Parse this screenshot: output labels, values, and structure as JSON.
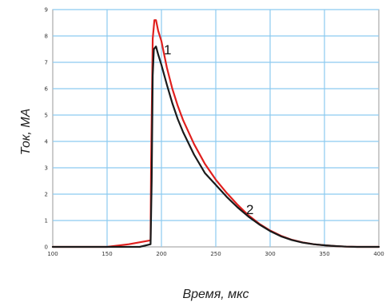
{
  "chart_data": {
    "type": "line",
    "title": "",
    "xlabel": "Время, мкс",
    "ylabel": "Ток, МА",
    "xlim": [
      100,
      400
    ],
    "ylim": [
      0,
      9
    ],
    "x_ticks": [
      "100",
      "150",
      "200",
      "250",
      "300",
      "350",
      "400"
    ],
    "y_ticks": [
      "0",
      "1",
      "2",
      "3",
      "4",
      "5",
      "6",
      "7",
      "8",
      "9"
    ],
    "grid": true,
    "grid_color": "#8ccaf0",
    "series": [
      {
        "name": "1",
        "color": "#e0201e",
        "x": [
          100,
          130,
          150,
          170,
          190,
          190.5,
          192,
          193.5,
          195,
          197,
          200,
          205,
          210,
          215,
          220,
          230,
          240,
          250,
          260,
          270,
          280,
          290,
          300,
          310,
          320,
          330,
          340,
          350,
          360,
          370,
          380,
          390,
          400
        ],
        "y": [
          0,
          0,
          0,
          0.1,
          0.25,
          3.2,
          7.9,
          8.6,
          8.6,
          8.2,
          7.8,
          6.8,
          6.0,
          5.35,
          4.8,
          3.9,
          3.15,
          2.55,
          2.05,
          1.6,
          1.2,
          0.88,
          0.62,
          0.42,
          0.27,
          0.17,
          0.1,
          0.06,
          0.03,
          0.01,
          0,
          0,
          0
        ]
      },
      {
        "name": "2",
        "color": "#1a1a1a",
        "x": [
          100,
          140,
          150,
          160,
          170,
          180,
          190,
          191,
          192,
          193,
          195,
          197,
          200,
          205,
          210,
          215,
          220,
          230,
          240,
          250,
          260,
          270,
          280,
          290,
          300,
          310,
          320,
          330,
          340,
          350,
          360,
          370,
          380,
          390,
          400
        ],
        "y": [
          0,
          0,
          0,
          0,
          0,
          0,
          0.1,
          2.5,
          6.5,
          7.5,
          7.6,
          7.3,
          6.9,
          6.15,
          5.45,
          4.85,
          4.35,
          3.5,
          2.8,
          2.35,
          1.9,
          1.5,
          1.15,
          0.85,
          0.6,
          0.4,
          0.26,
          0.16,
          0.1,
          0.06,
          0.03,
          0.01,
          0,
          0,
          0
        ]
      }
    ]
  }
}
